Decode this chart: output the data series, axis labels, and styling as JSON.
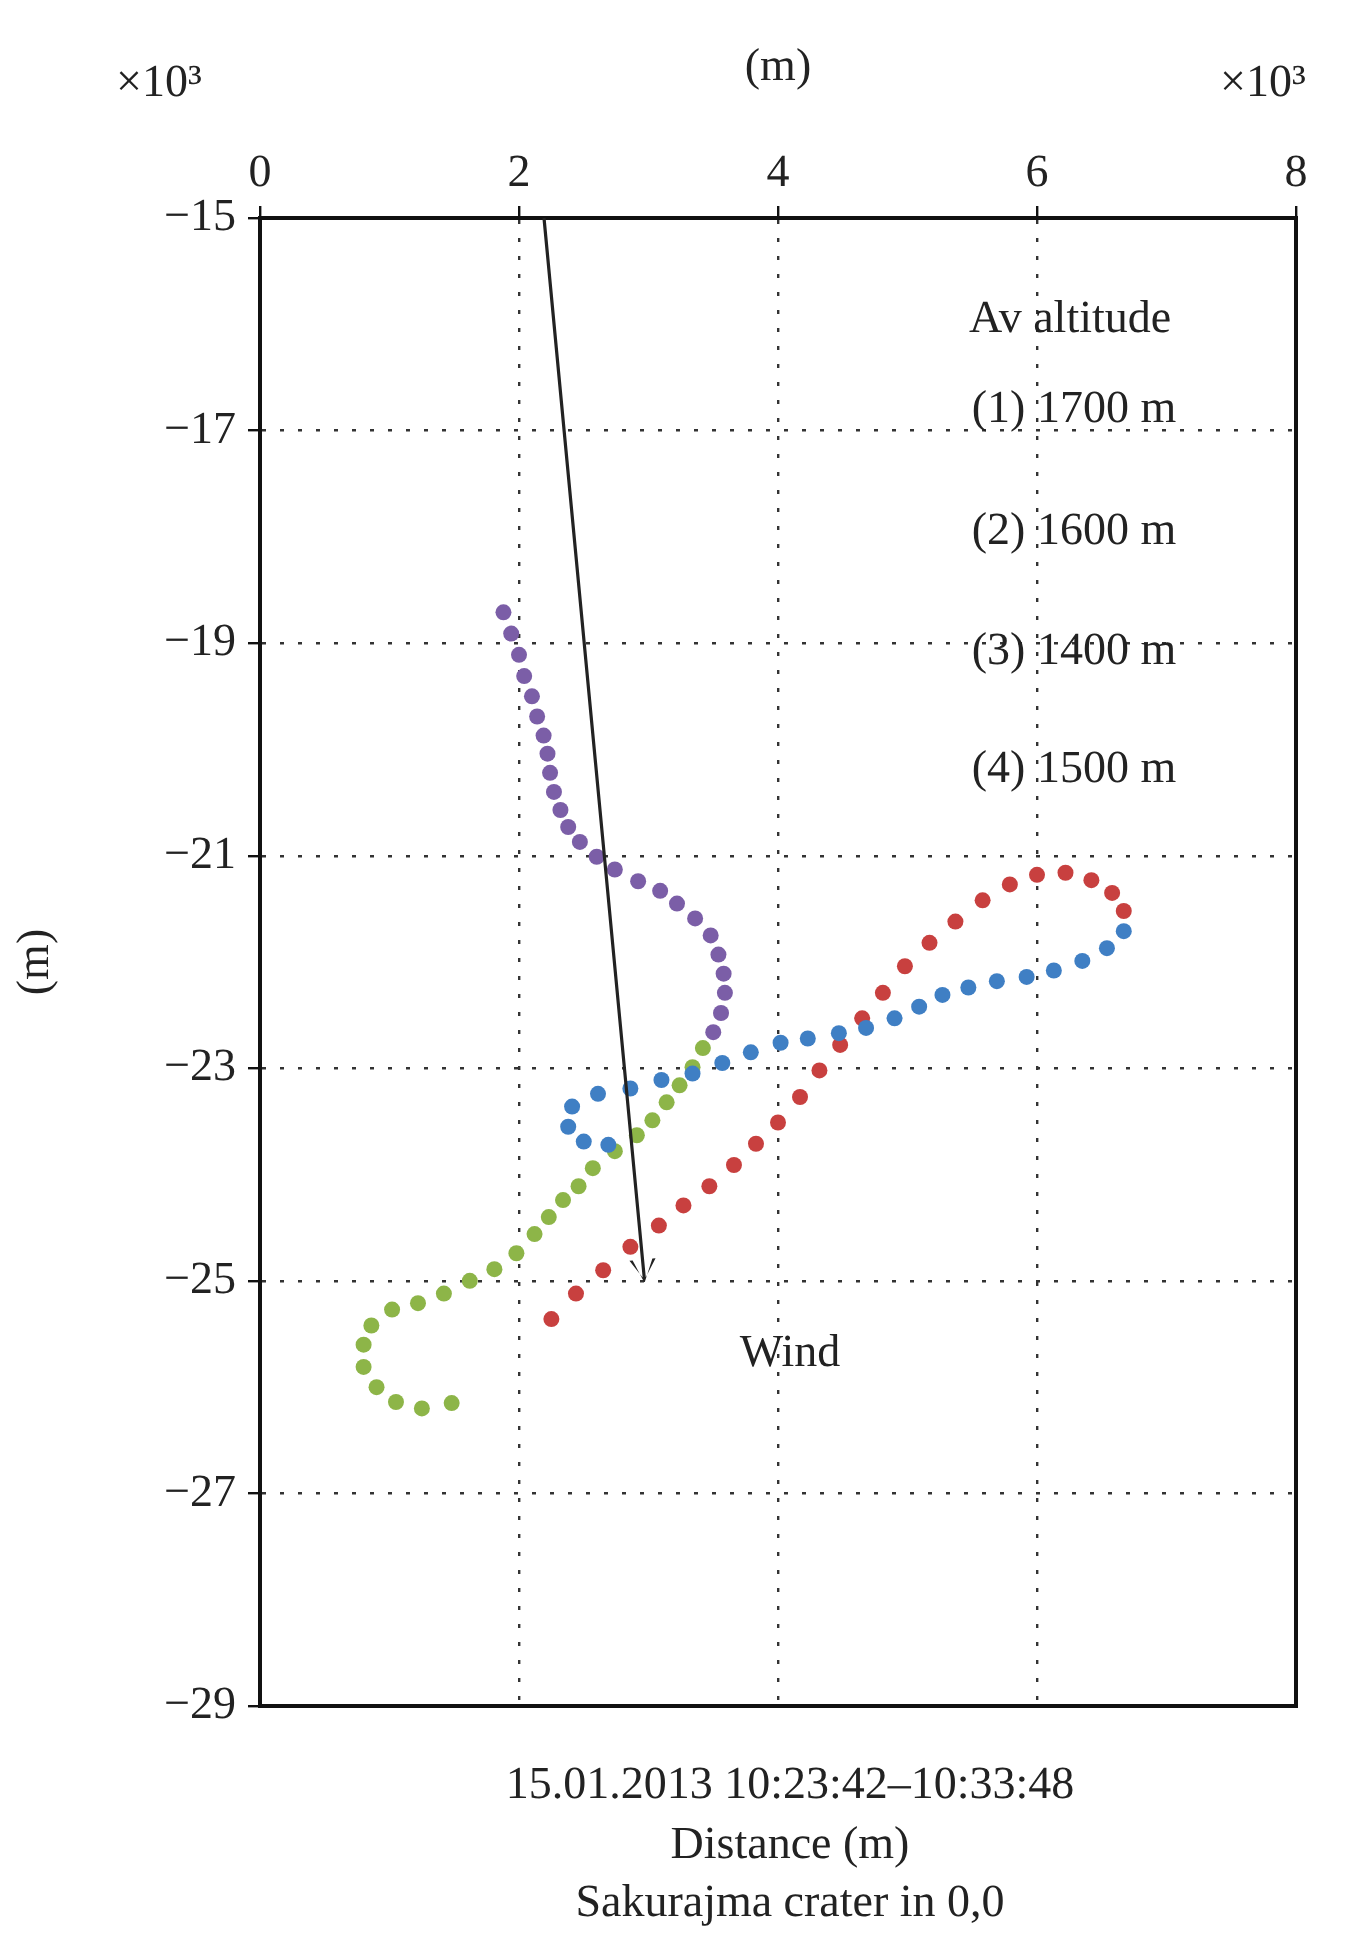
{
  "chart_data": {
    "type": "scatter",
    "xlabel": "(m)",
    "ylabel": "(m)",
    "xlim": [
      0,
      8
    ],
    "xticks": [
      0,
      2,
      4,
      6,
      8
    ],
    "ylim": [
      -29,
      -15
    ],
    "yticks": [
      -15,
      -17,
      -19,
      -21,
      -23,
      -25,
      -27,
      -29
    ],
    "grid": true,
    "marker": "circle",
    "legend": false,
    "series": [
      {
        "color": "#7b5ea7",
        "x": [
          1.88,
          1.94,
          2.0,
          2.04,
          2.1,
          2.14,
          2.19,
          2.22,
          2.24,
          2.27,
          2.32,
          2.38,
          2.47,
          2.6,
          2.74,
          2.92,
          3.09,
          3.22,
          3.36,
          3.48,
          3.54,
          3.58,
          3.59,
          3.56,
          3.5
        ],
        "values": [
          -18.71,
          -18.91,
          -19.11,
          -19.31,
          -19.5,
          -19.69,
          -19.87,
          -20.04,
          -20.22,
          -20.4,
          -20.57,
          -20.73,
          -20.87,
          -21.01,
          -21.13,
          -21.24,
          -21.33,
          -21.45,
          -21.59,
          -21.75,
          -21.93,
          -22.11,
          -22.29,
          -22.48,
          -22.66
        ]
      },
      {
        "color": "#3f7fc4",
        "x": [
          6.67,
          6.54,
          6.35,
          6.13,
          5.92,
          5.69,
          5.47,
          5.27,
          5.09,
          4.9,
          4.68,
          4.47,
          4.23,
          4.02,
          3.79,
          3.57,
          3.34,
          3.1,
          2.86,
          2.61,
          2.41,
          2.38,
          2.5,
          2.69
        ],
        "values": [
          -21.71,
          -21.87,
          -21.99,
          -22.08,
          -22.14,
          -22.18,
          -22.24,
          -22.31,
          -22.42,
          -22.53,
          -22.62,
          -22.67,
          -22.72,
          -22.76,
          -22.85,
          -22.95,
          -23.05,
          -23.11,
          -23.19,
          -23.24,
          -23.36,
          -23.55,
          -23.69,
          -23.72
        ]
      },
      {
        "color": "#c8403f",
        "x": [
          2.25,
          2.44,
          2.65,
          2.86,
          3.08,
          3.27,
          3.47,
          3.66,
          3.83,
          4.0,
          4.17,
          4.32,
          4.48,
          4.65,
          4.81,
          4.98,
          5.17,
          5.37,
          5.58,
          5.79,
          6.0,
          6.22,
          6.42,
          6.58,
          6.67
        ],
        "values": [
          -25.36,
          -25.12,
          -24.9,
          -24.68,
          -24.48,
          -24.29,
          -24.11,
          -23.91,
          -23.71,
          -23.51,
          -23.27,
          -23.02,
          -22.78,
          -22.53,
          -22.29,
          -22.04,
          -21.82,
          -21.62,
          -21.42,
          -21.27,
          -21.18,
          -21.16,
          -21.23,
          -21.35,
          -21.52
        ]
      },
      {
        "color": "#8db548",
        "x": [
          3.42,
          3.34,
          3.24,
          3.14,
          3.03,
          2.91,
          2.74,
          2.57,
          2.46,
          2.34,
          2.23,
          2.12,
          1.98,
          1.81,
          1.62,
          1.42,
          1.22,
          1.02,
          0.86,
          0.8,
          0.8,
          0.9,
          1.05,
          1.25,
          1.48
        ],
        "values": [
          -22.81,
          -22.99,
          -23.16,
          -23.32,
          -23.49,
          -23.63,
          -23.78,
          -23.94,
          -24.11,
          -24.24,
          -24.4,
          -24.56,
          -24.74,
          -24.89,
          -25.0,
          -25.12,
          -25.21,
          -25.27,
          -25.42,
          -25.6,
          -25.81,
          -26.0,
          -26.14,
          -26.2,
          -26.15
        ]
      }
    ],
    "annotations": [
      "Av altitude",
      "(1) 1700 m",
      "(2) 1600 m",
      "(3) 1400 m",
      "(4) 1500 m",
      "×10³",
      "×10³",
      "15.01.2013 10:23:42–10:33:48",
      "Distance (m)",
      "Sakurajma crater in 0,0",
      "Wind"
    ]
  }
}
